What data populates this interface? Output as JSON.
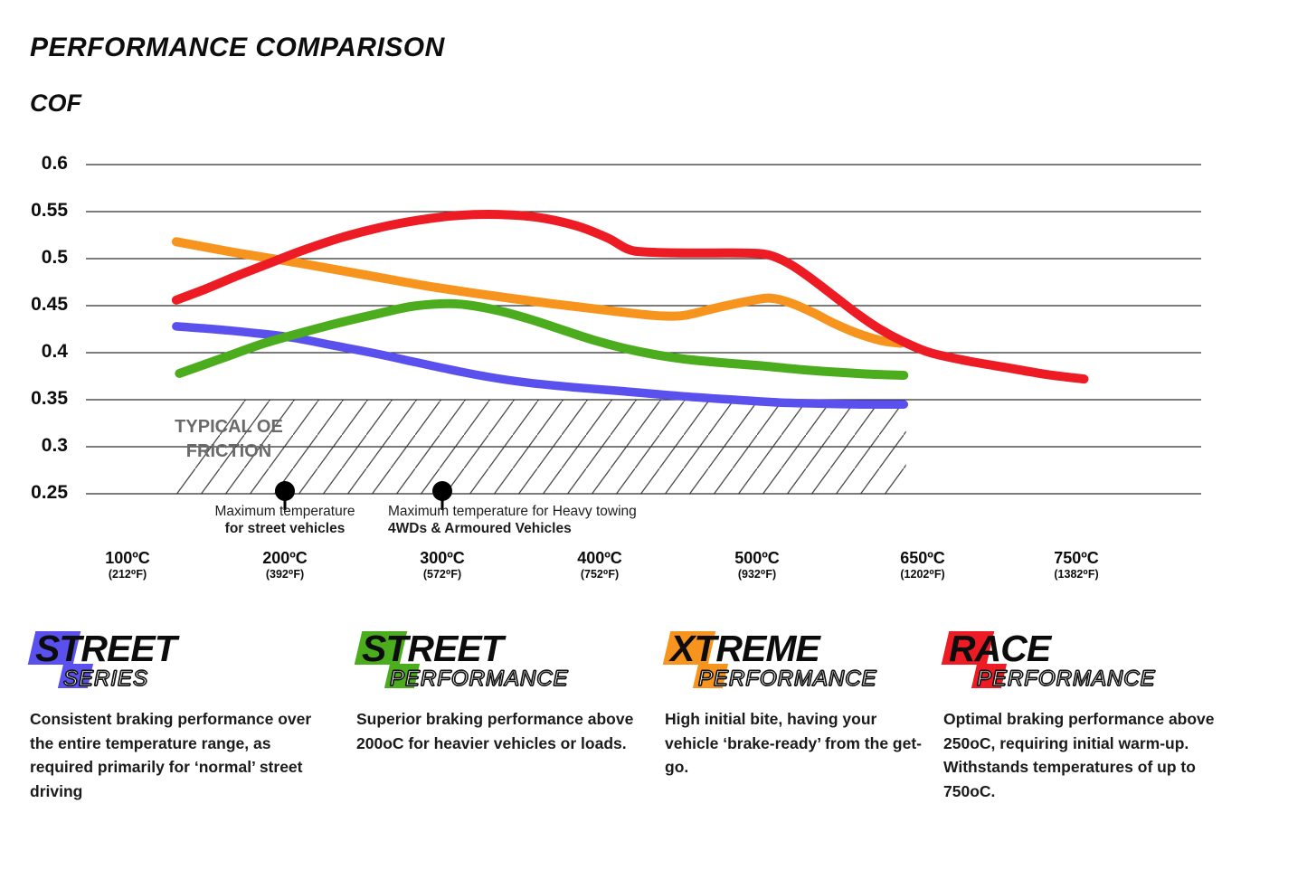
{
  "page": {
    "title": "PERFORMANCE COMPARISON",
    "y_axis_title": "COF"
  },
  "chart_data": {
    "type": "line",
    "title": "PERFORMANCE COMPARISON",
    "ylabel": "COF",
    "ylim": [
      0.25,
      0.6
    ],
    "grid": true,
    "y_ticks": [
      "0.6",
      "0.55",
      "0.5",
      "0.45",
      "0.4",
      "0.35",
      "0.3",
      "0.25"
    ],
    "x_ticks": [
      {
        "t": 100,
        "c": "100ºC",
        "f": "(212⁰F)"
      },
      {
        "t": 200,
        "c": "200ºC",
        "f": "(392⁰F)"
      },
      {
        "t": 300,
        "c": "300ºC",
        "f": "(572⁰F)"
      },
      {
        "t": 400,
        "c": "400ºC",
        "f": "(752⁰F)"
      },
      {
        "t": 500,
        "c": "500ºC",
        "f": "(932⁰F)"
      },
      {
        "t": 650,
        "c": "650ºC",
        "f": "(1202⁰F)"
      },
      {
        "t": 750,
        "c": "750ºC",
        "f": "(1382⁰F)"
      }
    ],
    "series": [
      {
        "name": "Street Series",
        "color": "#5a50ee",
        "width": 9.5,
        "points": [
          [
            131,
            0.428
          ],
          [
            155,
            0.425
          ],
          [
            180,
            0.421
          ],
          [
            205,
            0.416
          ],
          [
            230,
            0.408
          ],
          [
            255,
            0.4
          ],
          [
            280,
            0.391
          ],
          [
            305,
            0.382
          ],
          [
            330,
            0.374
          ],
          [
            355,
            0.368
          ],
          [
            385,
            0.363
          ],
          [
            415,
            0.359
          ],
          [
            450,
            0.354
          ],
          [
            485,
            0.35
          ],
          [
            520,
            0.347
          ],
          [
            555,
            0.346
          ],
          [
            595,
            0.345
          ],
          [
            633,
            0.345
          ]
        ]
      },
      {
        "name": "Street Performance",
        "color": "#4bad1d",
        "width": 10,
        "points": [
          [
            133,
            0.378
          ],
          [
            160,
            0.394
          ],
          [
            185,
            0.409
          ],
          [
            210,
            0.421
          ],
          [
            235,
            0.432
          ],
          [
            258,
            0.441
          ],
          [
            280,
            0.449
          ],
          [
            300,
            0.452
          ],
          [
            315,
            0.451
          ],
          [
            335,
            0.445
          ],
          [
            355,
            0.436
          ],
          [
            375,
            0.425
          ],
          [
            395,
            0.414
          ],
          [
            415,
            0.405
          ],
          [
            435,
            0.398
          ],
          [
            455,
            0.393
          ],
          [
            480,
            0.389
          ],
          [
            505,
            0.386
          ],
          [
            540,
            0.382
          ],
          [
            575,
            0.379
          ],
          [
            605,
            0.377
          ],
          [
            633,
            0.376
          ]
        ]
      },
      {
        "name": "Xtreme Performance",
        "color": "#f7941d",
        "width": 10,
        "points": [
          [
            131,
            0.518
          ],
          [
            170,
            0.506
          ],
          [
            210,
            0.495
          ],
          [
            250,
            0.483
          ],
          [
            290,
            0.471
          ],
          [
            330,
            0.461
          ],
          [
            370,
            0.452
          ],
          [
            400,
            0.446
          ],
          [
            420,
            0.442
          ],
          [
            440,
            0.439
          ],
          [
            455,
            0.44
          ],
          [
            475,
            0.448
          ],
          [
            495,
            0.455
          ],
          [
            512,
            0.458
          ],
          [
            530,
            0.453
          ],
          [
            550,
            0.443
          ],
          [
            570,
            0.431
          ],
          [
            590,
            0.421
          ],
          [
            612,
            0.413
          ],
          [
            630,
            0.41
          ]
        ]
      },
      {
        "name": "Race Performance",
        "color": "#ed1c24",
        "width": 10,
        "points": [
          [
            131,
            0.456
          ],
          [
            150,
            0.468
          ],
          [
            170,
            0.482
          ],
          [
            190,
            0.495
          ],
          [
            210,
            0.508
          ],
          [
            235,
            0.522
          ],
          [
            260,
            0.533
          ],
          [
            285,
            0.541
          ],
          [
            310,
            0.546
          ],
          [
            335,
            0.547
          ],
          [
            360,
            0.544
          ],
          [
            385,
            0.535
          ],
          [
            405,
            0.522
          ],
          [
            418,
            0.51
          ],
          [
            430,
            0.507
          ],
          [
            460,
            0.506
          ],
          [
            490,
            0.506
          ],
          [
            510,
            0.504
          ],
          [
            530,
            0.494
          ],
          [
            550,
            0.478
          ],
          [
            570,
            0.46
          ],
          [
            590,
            0.442
          ],
          [
            610,
            0.426
          ],
          [
            632,
            0.412
          ],
          [
            655,
            0.4
          ],
          [
            680,
            0.391
          ],
          [
            705,
            0.384
          ],
          [
            730,
            0.377
          ],
          [
            755,
            0.372
          ]
        ]
      }
    ],
    "oe_band": {
      "label": [
        "TYPICAL OE",
        "FRICTION"
      ],
      "cof_range": [
        0.25,
        0.35
      ],
      "temp_range": [
        120,
        635
      ]
    },
    "annotations": [
      {
        "temp_c": 200,
        "lines": [
          "Maximum temperature",
          "for street vehicles"
        ]
      },
      {
        "temp_c": 300,
        "lines": [
          "Maximum temperature for Heavy towing",
          "4WDs & Armoured Vehicles"
        ]
      }
    ]
  },
  "legend": [
    {
      "name": "Street Series",
      "color": "#5a50ee",
      "w1f": "S",
      "w1r": "TREET",
      "w2f": "S",
      "w2r": "ERIES",
      "desc": "Consistent braking performance over the entire temperature range, as required primarily for ‘normal’ street driving"
    },
    {
      "name": "Street Performance",
      "color": "#4bad1d",
      "w1f": "S",
      "w1r": "TREET",
      "w2f": "P",
      "w2r": "ERFORMANCE",
      "desc": "Superior braking performance above 200oC for heavier vehicles or loads."
    },
    {
      "name": "Xtreme Performance",
      "color": "#f7941d",
      "w1f": "X",
      "w1r": "TREME",
      "w2f": "P",
      "w2r": "ERFORMANCE",
      "desc": "High initial bite, having your vehicle ‘brake-ready’ from the get-go."
    },
    {
      "name": "Race Performance",
      "color": "#ed1c24",
      "w1f": "R",
      "w1r": "ACE",
      "w2f": "P",
      "w2r": "ERFORMANCE",
      "desc": "Optimal braking performance above 250oC, requiring initial warm-up. Withstands temperatures of up to 750oC."
    }
  ]
}
